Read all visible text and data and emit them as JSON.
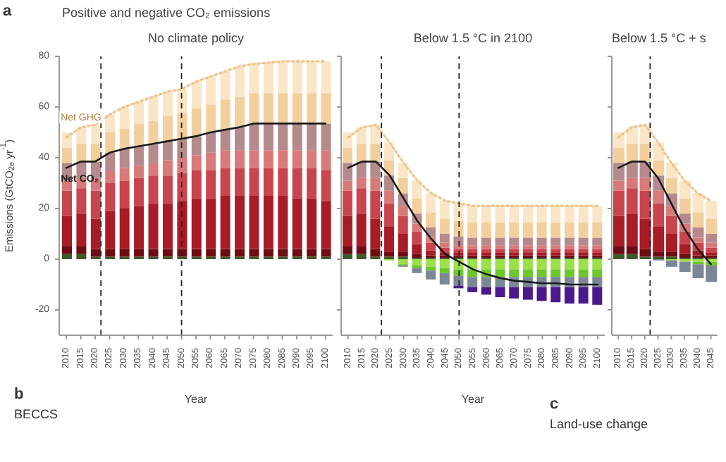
{
  "chart_data": [
    {
      "type": "bar",
      "title": "Positive and negative CO₂ emissions",
      "subtitle": "No climate policy",
      "xlabel": "Year",
      "ylabel": "Emissions (GtCO$_{2e}$ yr$^{-1}$)",
      "stacked": true,
      "annotations": [
        "a",
        "b",
        "BECCS",
        "c",
        "Land-use change"
      ],
      "x": [
        2010,
        2015,
        2020,
        2025,
        2030,
        2035,
        2040,
        2045,
        2050,
        2055,
        2060,
        2065,
        2070,
        2075,
        2080,
        2085,
        2090,
        2095,
        2100
      ],
      "xlim": [
        2007.5,
        2102.5
      ],
      "xticks": [
        2010,
        2015,
        2020,
        2025,
        2030,
        2035,
        2040,
        2045,
        2050,
        2055,
        2060,
        2065,
        2070,
        2075,
        2080,
        2085,
        2090,
        2095,
        2100
      ],
      "ylim": [
        -30,
        80
      ],
      "yticks": [
        -20,
        0,
        20,
        40,
        60,
        80
      ],
      "grid": false,
      "ref_lines": [
        {
          "axis": "x",
          "value": 2022,
          "color": "#222222",
          "line_style": "dashed"
        },
        {
          "axis": "x",
          "value": 2050,
          "color": "#222222",
          "line_style": "dashed"
        }
      ],
      "series": [
        {
          "type": "bar",
          "color": "#3d5a2a",
          "values": [
            2,
            2,
            1,
            1,
            1,
            1,
            1,
            1,
            1,
            1,
            1,
            1,
            1,
            1,
            1,
            1,
            1,
            1,
            1
          ]
        },
        {
          "type": "bar",
          "color": "#6e0c14",
          "values": [
            3,
            3,
            3,
            3,
            3,
            3,
            3,
            3,
            3,
            3,
            3,
            3,
            3,
            3,
            3,
            3,
            3,
            3,
            3
          ]
        },
        {
          "type": "bar",
          "color": "#a81c26",
          "values": [
            12,
            13,
            12,
            15,
            16,
            17,
            18,
            18,
            19,
            20,
            20,
            21,
            21,
            21,
            21,
            21,
            20,
            20,
            19
          ]
        },
        {
          "type": "bar",
          "color": "#c9454e",
          "values": [
            10,
            10,
            11,
            11,
            11,
            11,
            11,
            11,
            11,
            11,
            11,
            11,
            11,
            11,
            11,
            11,
            12,
            12,
            12
          ]
        },
        {
          "type": "bar",
          "color": "#d97a7a",
          "values": [
            4,
            4,
            5,
            5,
            5,
            5,
            5,
            6,
            6,
            6,
            7,
            7,
            7,
            7,
            7,
            7,
            7,
            7,
            8
          ]
        },
        {
          "type": "bar",
          "color": "#b58a8c",
          "values": [
            7,
            6.5,
            6.5,
            7,
            7.5,
            7.5,
            7.5,
            7.5,
            7.5,
            7.5,
            8,
            8,
            9,
            10.5,
            10.5,
            10.5,
            10.5,
            10.5,
            10.5
          ]
        },
        {
          "type": "bar",
          "color": "#f3cf9e",
          "values": [
            6,
            7,
            7,
            8,
            8,
            9,
            9,
            10,
            10,
            11,
            11,
            12,
            12,
            12,
            12,
            12,
            12,
            12,
            12
          ]
        },
        {
          "type": "bar",
          "color": "#fae6c6",
          "values": [
            6,
            6.5,
            7.5,
            7,
            8.5,
            8.5,
            9.5,
            9.5,
            9.5,
            10.5,
            11,
            11,
            12,
            11.5,
            12,
            12.5,
            12.5,
            12.5,
            12.5
          ]
        },
        {
          "type": "line",
          "name": "Net GHG",
          "color": "#eec48c",
          "line_style": "dotted",
          "values": [
            48,
            52,
            53,
            57,
            60,
            62,
            64,
            66,
            67,
            70,
            72,
            74,
            76,
            77,
            77.5,
            78,
            78,
            78,
            78
          ]
        },
        {
          "type": "line",
          "name": "Net CO₂",
          "color": "#1a1a1a",
          "line_style": "solid",
          "values": [
            36,
            38.5,
            38.5,
            42,
            43.5,
            44.5,
            45.5,
            46.5,
            47.5,
            48.5,
            50,
            51,
            52,
            53.5,
            53.5,
            53.5,
            53.5,
            53.5,
            53.5
          ]
        }
      ]
    },
    {
      "type": "bar",
      "title": "Below 1.5 °C in 2100",
      "xlabel": "Year",
      "stacked": true,
      "tick_labels": "x",
      "x": [
        2010,
        2015,
        2020,
        2025,
        2030,
        2035,
        2040,
        2045,
        2050,
        2055,
        2060,
        2065,
        2070,
        2075,
        2080,
        2085,
        2090,
        2095,
        2100
      ],
      "xlim": [
        2007.5,
        2102.5
      ],
      "xticks": [
        2010,
        2015,
        2020,
        2025,
        2030,
        2035,
        2040,
        2045,
        2050,
        2055,
        2060,
        2065,
        2070,
        2075,
        2080,
        2085,
        2090,
        2095,
        2100
      ],
      "ylim": [
        -30,
        80
      ],
      "yticks": [
        -20,
        0,
        20,
        40,
        60,
        80
      ],
      "grid": false,
      "ref_lines": [
        {
          "axis": "x",
          "value": 2022,
          "color": "#222222",
          "line_style": "dashed"
        },
        {
          "axis": "x",
          "value": 2050,
          "color": "#222222",
          "line_style": "dashed"
        }
      ],
      "series": [
        {
          "type": "bar",
          "color": "#3d5a2a",
          "values": [
            2,
            2,
            1,
            1,
            1,
            0.5,
            0.5,
            0.5,
            0.5,
            0.5,
            0.5,
            0.5,
            0.5,
            0.5,
            0.5,
            0.5,
            0.5,
            0.5,
            0.5
          ]
        },
        {
          "type": "bar",
          "color": "#6e0c14",
          "values": [
            3,
            3,
            3,
            2,
            2,
            1.5,
            1,
            1,
            1,
            1,
            1,
            1,
            1,
            1,
            1,
            1,
            1,
            1,
            1
          ]
        },
        {
          "type": "bar",
          "color": "#a81c26",
          "values": [
            12,
            13,
            12,
            10,
            7,
            4,
            2,
            1,
            1,
            1,
            1,
            1,
            1,
            1,
            1,
            1,
            1,
            1,
            1
          ]
        },
        {
          "type": "bar",
          "color": "#c9454e",
          "values": [
            10,
            10,
            11,
            9,
            7,
            5,
            3,
            2,
            1.5,
            1.5,
            1.5,
            1.5,
            1.5,
            1.5,
            1.5,
            1.5,
            1.5,
            1.5,
            1.5
          ]
        },
        {
          "type": "bar",
          "color": "#d97a7a",
          "values": [
            4,
            4,
            5,
            5,
            4,
            3,
            2,
            2,
            1.5,
            1.5,
            1.5,
            1.5,
            1.5,
            1.5,
            1.5,
            1.5,
            1.5,
            1.5,
            1.5
          ]
        },
        {
          "type": "bar",
          "color": "#b58a8c",
          "values": [
            7,
            6.5,
            6.5,
            6,
            5,
            4,
            4,
            3.5,
            3.5,
            3,
            3,
            3,
            3,
            3,
            3,
            3,
            3,
            3,
            3
          ]
        },
        {
          "type": "bar",
          "color": "#f3cf9e",
          "values": [
            6,
            7,
            7,
            6,
            6,
            6,
            6,
            6,
            6,
            6,
            6,
            6,
            6,
            6,
            6,
            6,
            6,
            6,
            6
          ]
        },
        {
          "type": "bar",
          "color": "#fae6c6",
          "values": [
            6,
            6.5,
            7.5,
            7,
            6,
            7,
            7.5,
            7,
            7,
            6.5,
            6.5,
            6.5,
            6.5,
            6.5,
            6.5,
            6.5,
            6.5,
            6.5,
            6.5
          ]
        },
        {
          "type": "bar",
          "color": "#9be04a",
          "values": [
            null,
            null,
            null,
            -0.5,
            -2,
            -2.5,
            -3,
            -3.5,
            -4,
            -4,
            -4,
            -4,
            -4,
            -4,
            -4,
            -4,
            -4,
            -4,
            -4
          ]
        },
        {
          "type": "bar",
          "color": "#6cc72a",
          "values": [
            null,
            null,
            null,
            null,
            -0.5,
            -1,
            -1.5,
            -2,
            -2.5,
            -3,
            -3,
            -3,
            -3,
            -3,
            -3,
            -3,
            -3,
            -3,
            -3
          ]
        },
        {
          "type": "bar",
          "color": "#7b8796",
          "values": [
            null,
            null,
            null,
            null,
            -0.5,
            -2,
            -3.5,
            -4.5,
            -4,
            -4,
            -4,
            -4,
            -4,
            -4,
            -4,
            -4,
            -4,
            -4,
            -4
          ]
        },
        {
          "type": "bar",
          "color": "#4a1a8c",
          "values": [
            null,
            null,
            null,
            null,
            null,
            null,
            null,
            null,
            -1,
            -2,
            -3,
            -4,
            -4.5,
            -5,
            -5.5,
            -6,
            -6.5,
            -6.5,
            -7
          ]
        },
        {
          "type": "line",
          "color": "#eec48c",
          "line_style": "dotted",
          "values": [
            48,
            52,
            53,
            46,
            38,
            31,
            26,
            23,
            22,
            21,
            21,
            21,
            21,
            21,
            21,
            21,
            21,
            21,
            21
          ]
        },
        {
          "type": "line",
          "color": "#1a1a1a",
          "line_style": "solid",
          "values": [
            36,
            38.5,
            38.5,
            33,
            24,
            15,
            8,
            2,
            -1,
            -4,
            -6,
            -7.5,
            -8.5,
            -9,
            -9.5,
            -9.5,
            -10,
            -10,
            -10
          ]
        }
      ]
    },
    {
      "type": "bar",
      "title": "Below 1.5 °C + s",
      "stacked": true,
      "tick_labels": "x",
      "x": [
        2010,
        2015,
        2020,
        2025,
        2030,
        2035,
        2040,
        2045
      ],
      "xlim": [
        2007.5,
        2047.5
      ],
      "xticks": [
        2010,
        2015,
        2020,
        2025,
        2030,
        2035,
        2040,
        2045
      ],
      "ylim": [
        -30,
        80
      ],
      "yticks": [
        -20,
        0,
        20,
        40,
        60,
        80
      ],
      "grid": false,
      "ref_lines": [
        {
          "axis": "x",
          "value": 2022,
          "color": "#222222",
          "line_style": "dashed"
        }
      ],
      "series": [
        {
          "type": "bar",
          "color": "#3d5a2a",
          "values": [
            2,
            2,
            1,
            1,
            1,
            0.5,
            0.5,
            0.5
          ]
        },
        {
          "type": "bar",
          "color": "#6e0c14",
          "values": [
            3,
            3,
            3,
            2,
            2,
            1.5,
            1,
            1
          ]
        },
        {
          "type": "bar",
          "color": "#a81c26",
          "values": [
            12,
            13,
            12,
            10,
            7,
            4,
            2,
            1
          ]
        },
        {
          "type": "bar",
          "color": "#c9454e",
          "values": [
            10,
            10,
            11,
            9,
            7,
            5,
            3,
            2
          ]
        },
        {
          "type": "bar",
          "color": "#d97a7a",
          "values": [
            4,
            4,
            5,
            5,
            4,
            3,
            2,
            2
          ]
        },
        {
          "type": "bar",
          "color": "#b58a8c",
          "values": [
            7,
            6.5,
            6.5,
            6,
            5,
            4,
            4,
            3.5
          ]
        },
        {
          "type": "bar",
          "color": "#f3cf9e",
          "values": [
            6,
            7,
            7,
            6,
            6,
            6,
            6,
            6
          ]
        },
        {
          "type": "bar",
          "color": "#fae6c6",
          "values": [
            6,
            6.5,
            7.5,
            7,
            6,
            7,
            7.5,
            7
          ]
        },
        {
          "type": "bar",
          "color": "#9be04a",
          "values": [
            null,
            null,
            null,
            null,
            -0.5,
            -1,
            -1,
            -1
          ]
        },
        {
          "type": "bar",
          "color": "#6cc72a",
          "values": [
            null,
            null,
            null,
            null,
            null,
            null,
            -1,
            -1.5
          ]
        },
        {
          "type": "bar",
          "color": "#7b8796",
          "values": [
            null,
            null,
            null,
            -0.5,
            -2.5,
            -4,
            -5.5,
            -6.5
          ]
        },
        {
          "type": "line",
          "color": "#eec48c",
          "line_style": "dotted",
          "values": [
            48,
            52,
            53,
            46,
            38,
            31,
            26,
            23
          ]
        },
        {
          "type": "line",
          "color": "#1a1a1a",
          "line_style": "solid",
          "values": [
            36,
            38.5,
            38.5,
            32,
            22,
            12,
            4,
            -2
          ]
        }
      ]
    }
  ]
}
